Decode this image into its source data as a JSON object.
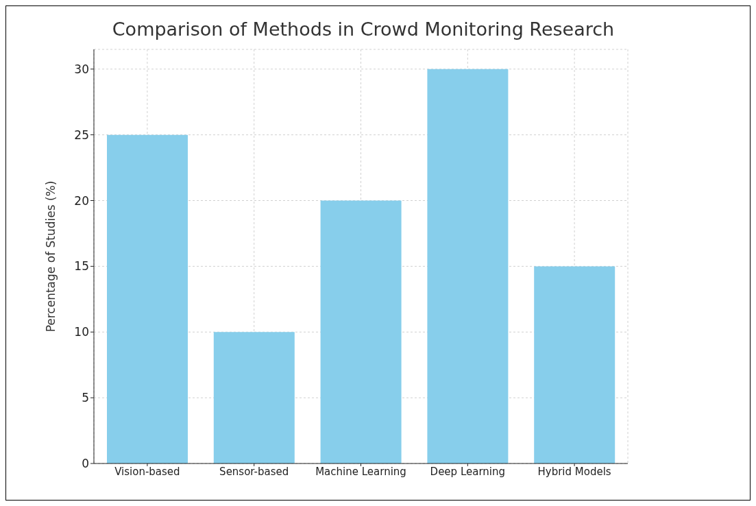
{
  "chart_data": {
    "type": "bar",
    "title": "Comparison of Methods in Crowd Monitoring Research",
    "ylabel": "Percentage of Studies (%)",
    "categories": [
      "Vision-based",
      "Sensor-based",
      "Machine Learning",
      "Deep Learning",
      "Hybrid Models"
    ],
    "values": [
      25,
      10,
      20,
      30,
      15
    ],
    "color": "#87ceeb",
    "ylim": [
      0,
      31.5
    ],
    "yticks": [
      0,
      5,
      10,
      15,
      20,
      25,
      30
    ],
    "grid": true
  }
}
